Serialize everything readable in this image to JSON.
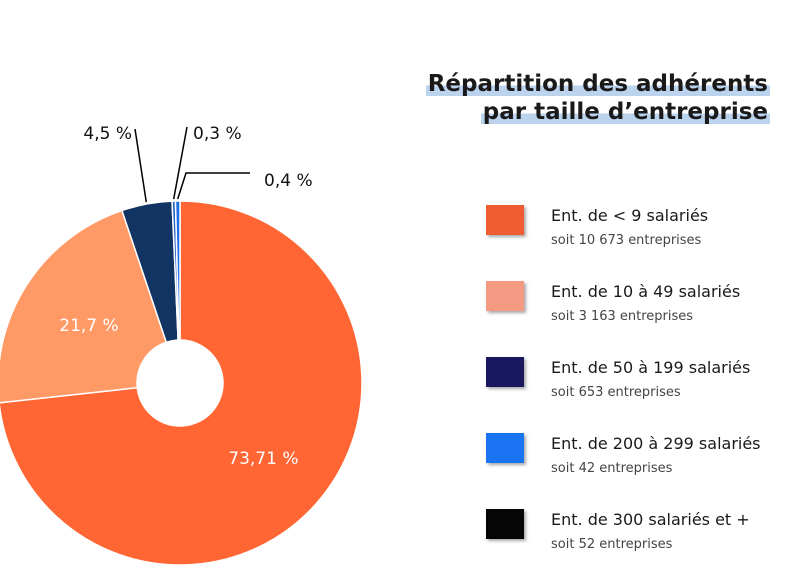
{
  "title": {
    "line1": "Répartition des adhérents",
    "line2": "par taille d’entreprise"
  },
  "chart_data": {
    "type": "pie",
    "donut": true,
    "categories": [
      "Ent. de < 9 salariés",
      "Ent. de 10 à 49 salariés",
      "Ent. de 50 à 199 salariés",
      "Ent. de 200 à 299 salariés",
      "Ent. de 300 salariés et +"
    ],
    "values": [
      73.71,
      21.7,
      4.5,
      0.3,
      0.4
    ],
    "value_labels": [
      "73,71 %",
      "21,7 %",
      "4,5 %",
      "0,3 %",
      "0,4 %"
    ],
    "slice_colors": [
      "#ff6633",
      "#ff9966",
      "#123463",
      "#2a5fc4",
      "#1f6fe6"
    ],
    "legend": [
      {
        "label": "Ent. de < 9 salariés",
        "sub": "soit 10 673 entreprises",
        "color": "#ef5c31"
      },
      {
        "label": "Ent. de 10 à 49 salariés",
        "sub": "soit 3 163 entreprises",
        "color": "#f49a83"
      },
      {
        "label": "Ent. de 50 à 199 salariés",
        "sub": "soit 653 entreprises",
        "color": "#19175e"
      },
      {
        "label": "Ent. de 200 à 299 salariés",
        "sub": "soit 42 entreprises",
        "color": "#1a73f0"
      },
      {
        "label": "Ent. de 300 salariés et +",
        "sub": "soit 52 entreprises",
        "color": "#050505"
      }
    ],
    "legend_position": "right"
  }
}
